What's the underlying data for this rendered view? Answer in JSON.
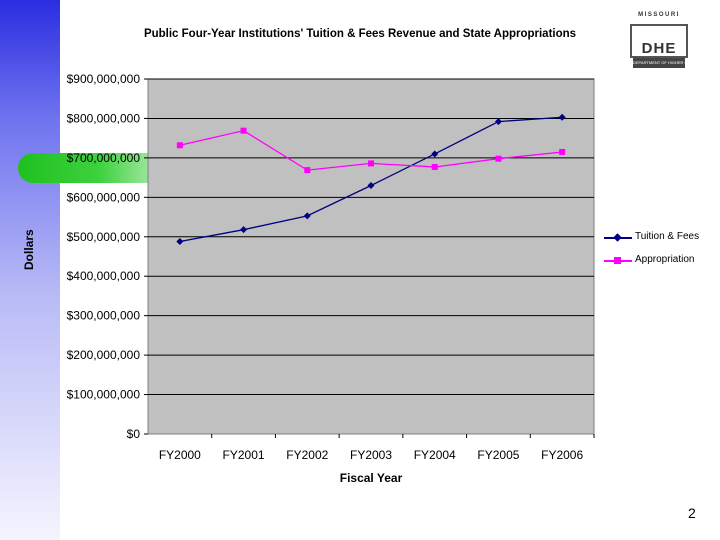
{
  "slide": {
    "page_number": "2"
  },
  "logo": {
    "arc_text": "MISSOURI",
    "main_text": "DHE",
    "sub_text": "DEPARTMENT OF HIGHER EDUCATION"
  },
  "colors": {
    "plot_background": "#c0c0c0",
    "tuition_series": "#000080",
    "appropriation_series": "#ff00ff"
  },
  "chart_data": {
    "type": "line",
    "title": "Public Four-Year Institutions' Tuition & Fees Revenue and State Appropriations",
    "xlabel": "Fiscal Year",
    "ylabel": "Dollars",
    "ylim": [
      0,
      900000000
    ],
    "ytick_values": [
      0,
      100000000,
      200000000,
      300000000,
      400000000,
      500000000,
      600000000,
      700000000,
      800000000,
      900000000
    ],
    "ytick_labels": [
      "$0",
      "$100,000,000",
      "$200,000,000",
      "$300,000,000",
      "$400,000,000",
      "$500,000,000",
      "$600,000,000",
      "$700,000,000",
      "$800,000,000",
      "$900,000,000"
    ],
    "categories": [
      "FY2000",
      "FY2001",
      "FY2002",
      "FY2003",
      "FY2004",
      "FY2005",
      "FY2006"
    ],
    "grid": true,
    "legend_position": "right",
    "series": [
      {
        "name": "Tuition & Fees",
        "marker": "diamond",
        "values": [
          488000000,
          518000000,
          553000000,
          630000000,
          710000000,
          792000000,
          803000000
        ]
      },
      {
        "name": "Appropriation",
        "marker": "square",
        "values": [
          732000000,
          769000000,
          669000000,
          686000000,
          677000000,
          698000000,
          715000000
        ]
      }
    ]
  }
}
